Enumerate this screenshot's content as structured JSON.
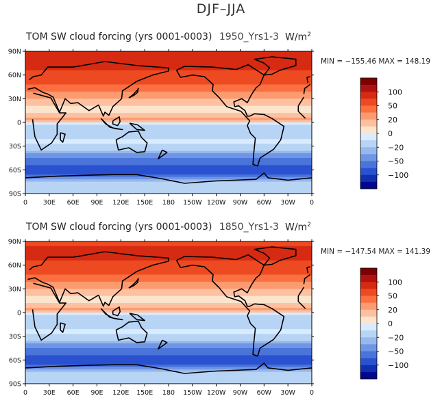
{
  "figure": {
    "title": "DJF–JJA"
  },
  "panels": [
    {
      "id": "top",
      "title_overlap": "1950_Yrs1-3",
      "title": "TOM SW cloud forcing (yrs 0001-0003)",
      "units": "W/m",
      "units_exp": "2",
      "min_label": "MIN = −155.46",
      "max_label": "MAX = 148.19",
      "min": -155.46,
      "max": 148.19
    },
    {
      "id": "bottom",
      "title_overlap": "1850_Yrs1-3",
      "title": "TOM SW cloud forcing (yrs 0001-0003)",
      "units": "W/m",
      "units_exp": "2",
      "min_label": "MIN = −147.54",
      "max_label": "MAX = 141.39",
      "min": -147.54,
      "max": 141.39
    }
  ],
  "axes": {
    "lon_labels": [
      "0",
      "30E",
      "60E",
      "90E",
      "120E",
      "150E",
      "180",
      "150W",
      "120W",
      "90W",
      "60W",
      "30W",
      "0"
    ],
    "lat_labels": [
      "90N",
      "60N",
      "30N",
      "0",
      "30S",
      "60S",
      "90S"
    ]
  },
  "colorbar": {
    "tick_labels": [
      "100",
      "50",
      "20",
      "0",
      "−20",
      "−50",
      "−100"
    ],
    "colors": [
      "#7f0000",
      "#b01212",
      "#d62a12",
      "#ee4a22",
      "#fb7040",
      "#fc9a70",
      "#fdc0a0",
      "#fde4cc",
      "#d9ecff",
      "#b8d4f5",
      "#96b8ee",
      "#6e96e4",
      "#4a74da",
      "#2a52d0",
      "#1030b0",
      "#000890"
    ]
  },
  "chart_data": {
    "type": "heatmap",
    "title": "DJF–JJA",
    "variable": "TOM SW cloud forcing (yrs 0001-0003)",
    "units": "W/m2",
    "x_range": [
      0,
      360
    ],
    "y_range": [
      -90,
      90
    ],
    "color_levels": [
      -100,
      -50,
      -20,
      0,
      20,
      50,
      100
    ],
    "series": [
      {
        "name": "1950_Yrs1-3",
        "min": -155.46,
        "max": 148.19,
        "zonal_profile": {
          "lat": [
            85,
            75,
            65,
            55,
            45,
            35,
            25,
            15,
            5,
            -5,
            -15,
            -25,
            -35,
            -45,
            -55,
            -65,
            -75,
            -85
          ],
          "value": [
            100,
            85,
            75,
            65,
            45,
            28,
            15,
            5,
            25,
            -15,
            -15,
            -5,
            -20,
            -55,
            -80,
            -75,
            -15,
            -10
          ]
        }
      },
      {
        "name": "1850_Yrs1-3",
        "min": -147.54,
        "max": 141.39,
        "zonal_profile": {
          "lat": [
            85,
            75,
            65,
            55,
            45,
            35,
            25,
            15,
            5,
            -5,
            -15,
            -25,
            -35,
            -45,
            -55,
            -65,
            -75,
            -85
          ],
          "value": [
            75,
            85,
            75,
            65,
            45,
            28,
            15,
            5,
            25,
            -15,
            -15,
            -5,
            -20,
            -55,
            -80,
            -75,
            -15,
            -10
          ]
        }
      }
    ]
  }
}
